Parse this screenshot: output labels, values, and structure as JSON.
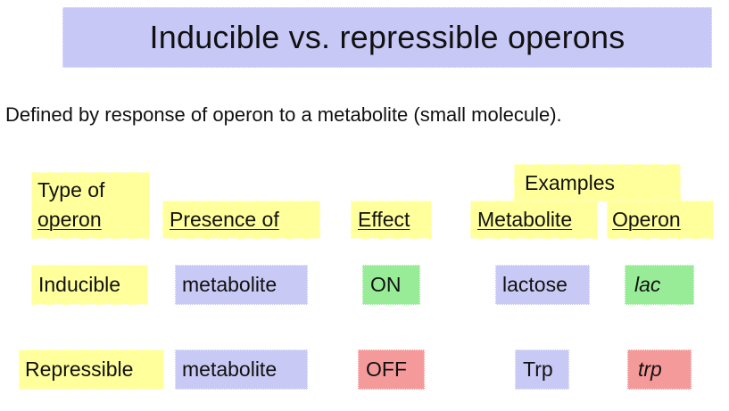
{
  "slide": {
    "title": "Inducible vs. repressible operons",
    "subtitle": "Defined by response of operon to a metabolite (small molecule)."
  },
  "table": {
    "group_header": "Examples",
    "headers": {
      "type_line1": "Type of",
      "type_line2": "operon",
      "presence": "Presence of",
      "effect": "Effect",
      "metabolite": "Metabolite",
      "operon": "Operon"
    },
    "rows": [
      {
        "type": "Inducible",
        "presence": "metabolite",
        "effect": "ON",
        "metabolite": "lactose",
        "operon": "lac"
      },
      {
        "type": "Repressible",
        "presence": "metabolite",
        "effect": "OFF",
        "metabolite": "Trp",
        "operon": "trp"
      }
    ]
  },
  "colors": {
    "title_bg": "#c8c8f6",
    "yellow": "#ffff9c",
    "blue": "#c9c9f5",
    "green": "#98ec98",
    "red": "#f59a9a"
  }
}
